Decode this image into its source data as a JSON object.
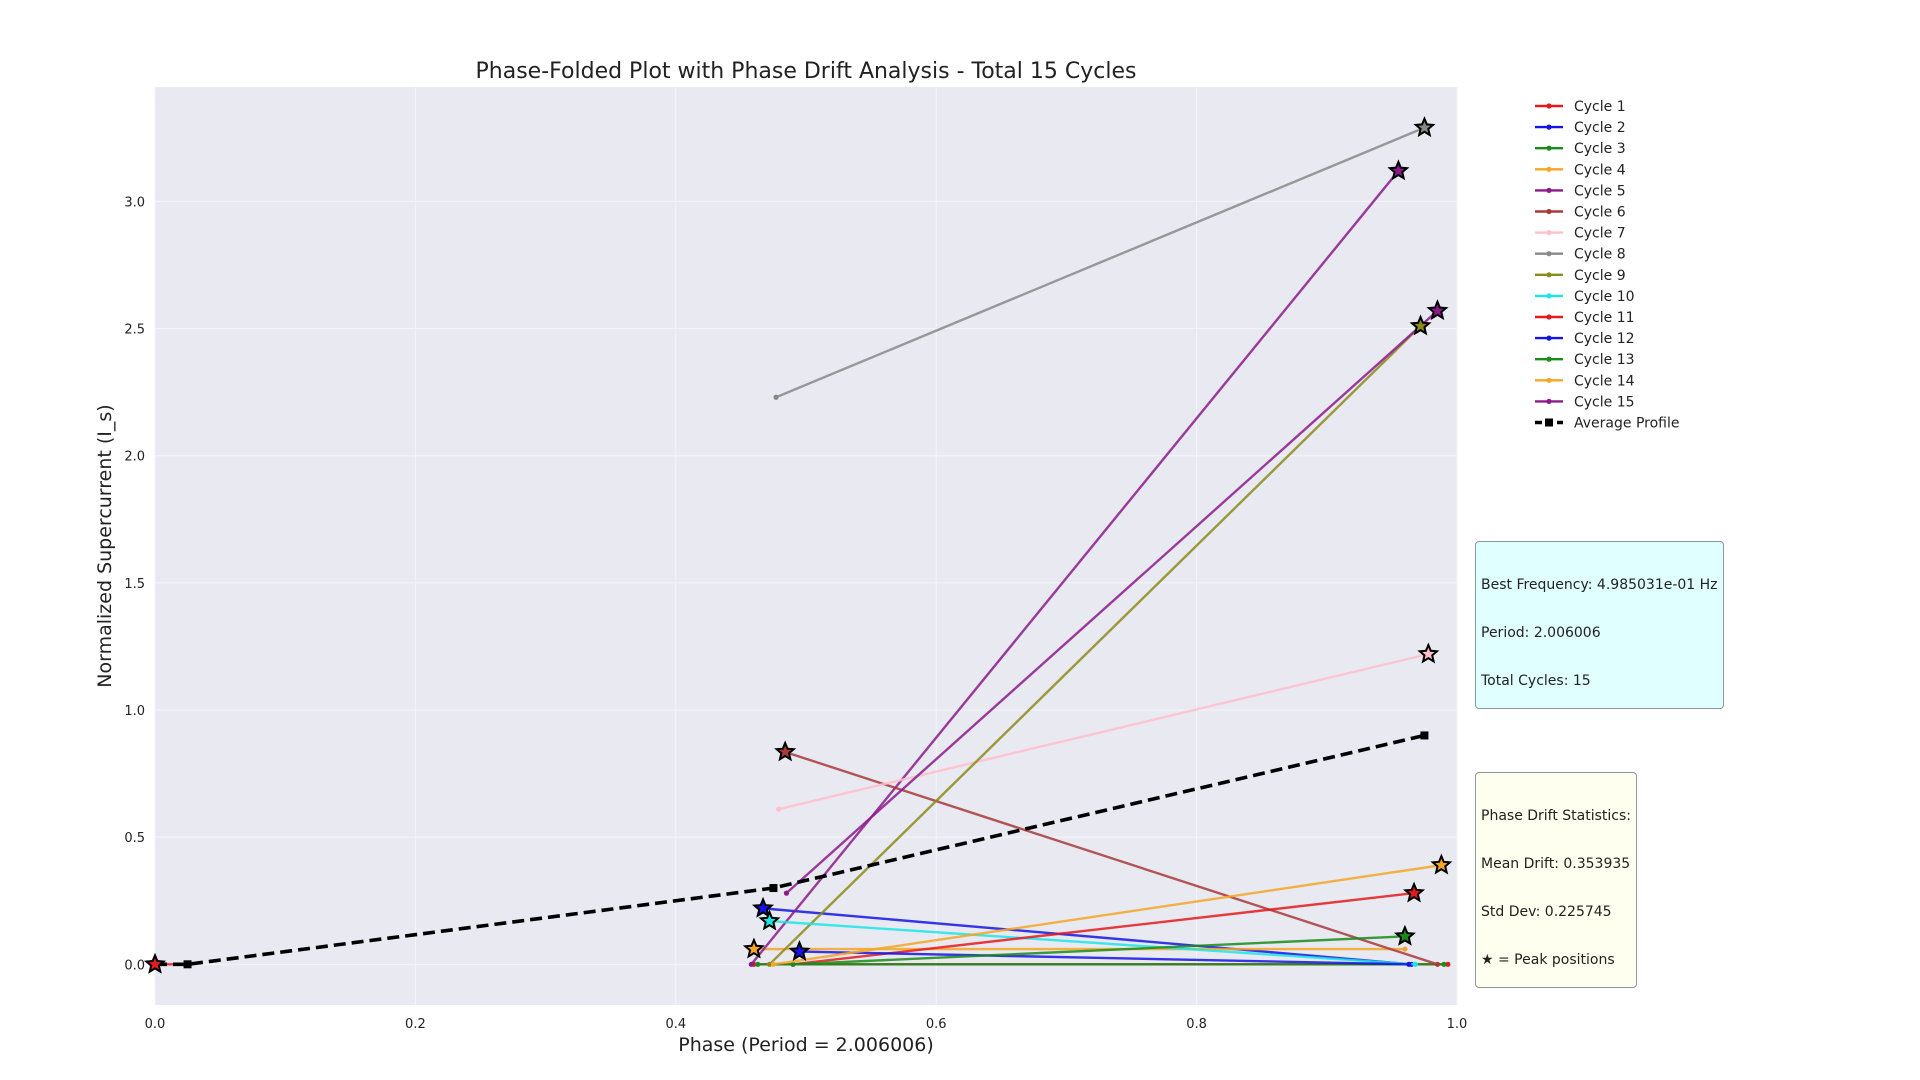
{
  "chart_data": {
    "type": "line",
    "title": "Phase-Folded Plot with Phase Drift Analysis - Total 15 Cycles",
    "xlabel": "Phase (Period = 2.006006)",
    "ylabel": "Normalized Supercurrent (I_s)",
    "xlim": [
      0.0,
      1.0
    ],
    "ylim": [
      -0.16,
      3.45
    ],
    "xticks": [
      "0.0",
      "0.2",
      "0.4",
      "0.6",
      "0.8",
      "1.0"
    ],
    "xtick_values": [
      0.0,
      0.2,
      0.4,
      0.6,
      0.8,
      1.0
    ],
    "yticks": [
      "0.0",
      "0.5",
      "1.0",
      "1.5",
      "2.0",
      "2.5",
      "3.0"
    ],
    "ytick_values": [
      0.0,
      0.5,
      1.0,
      1.5,
      2.0,
      2.5,
      3.0
    ],
    "grid": true,
    "legend_position": "upper-right-outside",
    "series": [
      {
        "name": "Cycle 1",
        "color": "#e41a1c",
        "points": [
          [
            0.0,
            0.0
          ],
          [
            0.025,
            0.0
          ]
        ],
        "peak": [
          0.0,
          0.0
        ]
      },
      {
        "name": "Cycle 1",
        "color": "#e41a1c",
        "points": [
          [
            0.46,
            0.0
          ],
          [
            0.993,
            0.0
          ]
        ],
        "peak": null
      },
      {
        "name": "Cycle 2",
        "color": "#1414e6",
        "points": [
          [
            0.467,
            0.22
          ],
          [
            0.965,
            0.0
          ]
        ],
        "peak": [
          0.467,
          0.22
        ]
      },
      {
        "name": "Cycle 3",
        "color": "#1a8c1a",
        "points": [
          [
            0.463,
            0.0
          ],
          [
            0.99,
            0.0
          ]
        ],
        "peak": null
      },
      {
        "name": "Cycle 4",
        "color": "#f5a623",
        "points": [
          [
            0.46,
            0.06
          ],
          [
            0.96,
            0.06
          ]
        ],
        "peak": [
          0.46,
          0.06
        ]
      },
      {
        "name": "Cycle 5",
        "color": "#8b1a8b",
        "points": [
          [
            0.458,
            0.0
          ],
          [
            0.955,
            3.12
          ]
        ],
        "peak": [
          0.955,
          3.12
        ]
      },
      {
        "name": "Cycle 6",
        "color": "#a83a3a",
        "points": [
          [
            0.484,
            0.835
          ],
          [
            0.985,
            0.0
          ]
        ],
        "peak": [
          0.484,
          0.835
        ]
      },
      {
        "name": "Cycle 7",
        "color": "#ffc0cb",
        "points": [
          [
            0.479,
            0.61
          ],
          [
            0.978,
            1.22
          ]
        ],
        "peak": [
          0.978,
          1.22
        ]
      },
      {
        "name": "Cycle 8",
        "color": "#888888",
        "points": [
          [
            0.477,
            2.23
          ],
          [
            0.975,
            3.29
          ]
        ],
        "peak": [
          0.975,
          3.29
        ]
      },
      {
        "name": "Cycle 9",
        "color": "#8b8b1a",
        "points": [
          [
            0.472,
            0.0
          ],
          [
            0.972,
            2.51
          ]
        ],
        "peak": [
          0.972,
          2.51
        ]
      },
      {
        "name": "Cycle 10",
        "color": "#1ae6e6",
        "points": [
          [
            0.472,
            0.17
          ],
          [
            0.968,
            0.0
          ]
        ],
        "peak": [
          0.472,
          0.17
        ]
      },
      {
        "name": "Cycle 11",
        "color": "#e41a1c",
        "points": [
          [
            0.49,
            0.0
          ],
          [
            0.967,
            0.28
          ]
        ],
        "peak": [
          0.967,
          0.28
        ]
      },
      {
        "name": "Cycle 12",
        "color": "#1414e6",
        "points": [
          [
            0.495,
            0.05
          ],
          [
            0.963,
            0.0
          ]
        ],
        "peak": [
          0.495,
          0.05
        ]
      },
      {
        "name": "Cycle 13",
        "color": "#1a8c1a",
        "points": [
          [
            0.49,
            0.0
          ],
          [
            0.96,
            0.11
          ]
        ],
        "peak": [
          0.96,
          0.11
        ]
      },
      {
        "name": "Cycle 14",
        "color": "#f5a623",
        "points": [
          [
            0.475,
            0.0
          ],
          [
            0.988,
            0.39
          ]
        ],
        "peak": [
          0.988,
          0.39
        ]
      },
      {
        "name": "Cycle 15",
        "color": "#8b1a8b",
        "points": [
          [
            0.485,
            0.28
          ],
          [
            0.985,
            2.57
          ]
        ],
        "peak": [
          0.985,
          2.57
        ]
      }
    ],
    "average_profile": {
      "name": "Average Profile",
      "color": "#000000",
      "points": [
        [
          0.0,
          0.0
        ],
        [
          0.025,
          0.0
        ],
        [
          0.475,
          0.3
        ],
        [
          0.975,
          0.9
        ]
      ]
    },
    "legend": [
      {
        "label": "Cycle 1",
        "color": "#e41a1c"
      },
      {
        "label": "Cycle 2",
        "color": "#1414e6"
      },
      {
        "label": "Cycle 3",
        "color": "#1a8c1a"
      },
      {
        "label": "Cycle 4",
        "color": "#f5a623"
      },
      {
        "label": "Cycle 5",
        "color": "#8b1a8b"
      },
      {
        "label": "Cycle 6",
        "color": "#a83a3a"
      },
      {
        "label": "Cycle 7",
        "color": "#ffc0cb"
      },
      {
        "label": "Cycle 8",
        "color": "#888888"
      },
      {
        "label": "Cycle 9",
        "color": "#8b8b1a"
      },
      {
        "label": "Cycle 10",
        "color": "#1ae6e6"
      },
      {
        "label": "Cycle 11",
        "color": "#e41a1c"
      },
      {
        "label": "Cycle 12",
        "color": "#1414e6"
      },
      {
        "label": "Cycle 13",
        "color": "#1a8c1a"
      },
      {
        "label": "Cycle 14",
        "color": "#f5a623"
      },
      {
        "label": "Cycle 15",
        "color": "#8b1a8b"
      },
      {
        "label": "Average Profile",
        "color": "#000000",
        "dashed": true
      }
    ],
    "annotations": {
      "frequency_box": [
        "Best Frequency: 4.985031e-01 Hz",
        "Period: 2.006006",
        "Total Cycles: 15"
      ],
      "drift_box": [
        "Phase Drift Statistics:",
        "Mean Drift: 0.353935",
        "Std Dev: 0.225745",
        "★ = Peak positions"
      ]
    },
    "colors": {
      "plot_background": "#e8e9f1",
      "grid": "#f5f5f8",
      "freq_box_bg": "#e0ffff",
      "drift_box_bg": "#fffff0"
    }
  }
}
